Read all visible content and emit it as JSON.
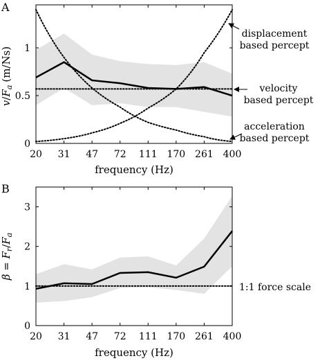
{
  "chart_data": [
    {
      "panel_label": "A",
      "type": "line",
      "xlabel": "frequency (Hz)",
      "ylabel": "v/F_a (m/Ns)",
      "ylabel_parts": {
        "v": "v",
        "slash": "/",
        "F": "F",
        "sub": "a",
        "units": "(m/Ns)"
      },
      "categories": [
        "20",
        "31",
        "47",
        "72",
        "111",
        "170",
        "261",
        "400"
      ],
      "ylim": [
        0,
        1.45
      ],
      "yticks": [
        0,
        0.5,
        1
      ],
      "ytick_labels": [
        "0",
        "0.5",
        "1"
      ],
      "grid": false,
      "series": [
        {
          "values": [
            0.69,
            0.85,
            0.66,
            0.63,
            0.58,
            0.57,
            0.59,
            0.5
          ],
          "style": "solid"
        }
      ],
      "band": {
        "lower": [
          0.4,
          0.58,
          0.4,
          0.42,
          0.38,
          0.38,
          0.33,
          0.28
        ],
        "upper": [
          0.98,
          1.15,
          0.93,
          0.86,
          0.83,
          0.82,
          0.85,
          0.73
        ],
        "color": "#e3e3e3"
      },
      "reference_lines": [
        {
          "label": "displacement\nbased percept",
          "values": [
            0.02,
            0.05,
            0.11,
            0.21,
            0.37,
            0.57,
            0.95,
            1.4
          ]
        },
        {
          "label": "velocity\nbased percept",
          "values": [
            0.57,
            0.57,
            0.57,
            0.57,
            0.57,
            0.57,
            0.57,
            0.57
          ]
        },
        {
          "label": "acceleration\nbased percept",
          "values": [
            1.4,
            0.9,
            0.58,
            0.38,
            0.22,
            0.14,
            0.07,
            0.02
          ]
        }
      ]
    },
    {
      "panel_label": "B",
      "type": "line",
      "xlabel": "frequency (Hz)",
      "ylabel": "β = F_r/F_a",
      "ylabel_parts": {
        "beta": "β",
        "eq": " = ",
        "F1": "F",
        "sub1": "r",
        "slash": "/",
        "F2": "F",
        "sub2": "a"
      },
      "categories": [
        "20",
        "31",
        "47",
        "72",
        "111",
        "170",
        "261",
        "400"
      ],
      "ylim": [
        0,
        3.5
      ],
      "yticks": [
        0,
        1,
        2,
        3
      ],
      "ytick_labels": [
        "0",
        "1",
        "2",
        "3"
      ],
      "grid": false,
      "series": [
        {
          "values": [
            0.93,
            1.07,
            1.05,
            1.33,
            1.35,
            1.21,
            1.49,
            2.39
          ],
          "style": "solid"
        }
      ],
      "band": {
        "lower": [
          0.58,
          0.62,
          0.72,
          0.95,
          0.97,
          0.9,
          0.8,
          1.5
        ],
        "upper": [
          1.3,
          1.55,
          1.42,
          1.72,
          1.75,
          1.52,
          2.2,
          3.28
        ],
        "color": "#e3e3e3"
      },
      "reference_lines": [
        {
          "label": "1:1 force scale",
          "values": [
            1,
            1,
            1,
            1,
            1,
            1,
            1,
            1
          ]
        }
      ]
    }
  ]
}
